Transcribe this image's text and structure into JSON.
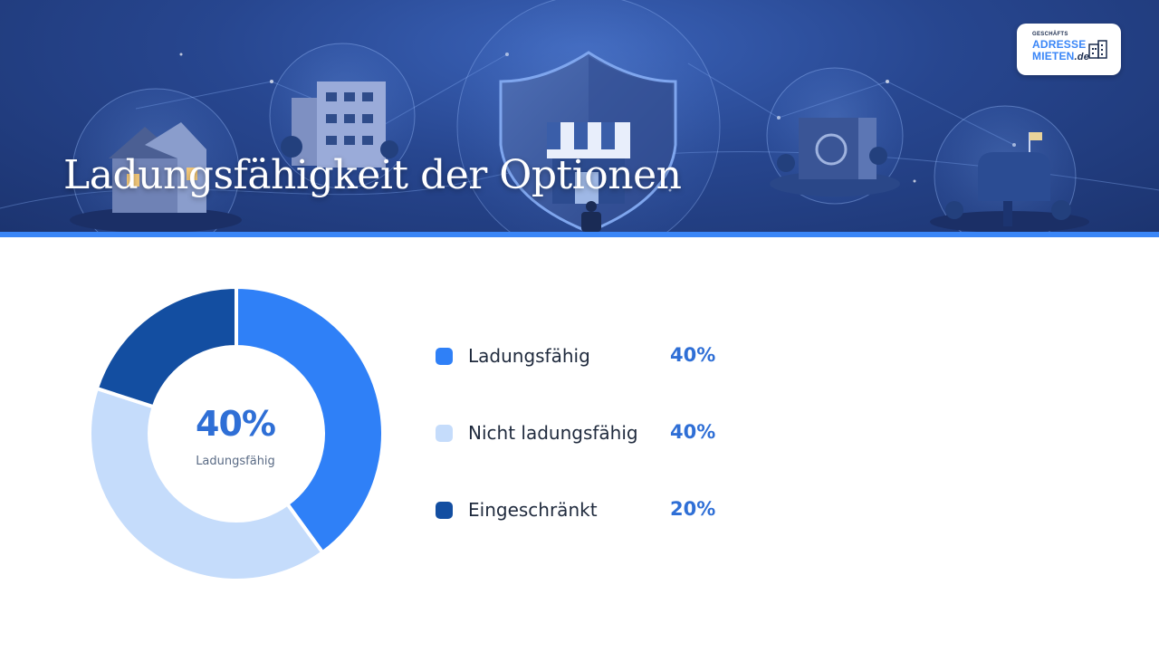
{
  "slide": {
    "title": "Ladungsfähigkeit der Optionen"
  },
  "logo": {
    "small": "GESCHÄFTS",
    "line1": "ADRESSE",
    "line2": "MIETEN",
    "tld": ".de"
  },
  "colors": {
    "accent": "#3a86f7",
    "ladungsfaehig": "#2f80f7",
    "nicht_ladungsfaehig": "#c5dcfb",
    "eingeschraenkt": "#134ea1",
    "value_text": "#2f6fd6"
  },
  "chart_data": {
    "type": "pie",
    "donut": true,
    "categories": [
      "Ladungsfähig",
      "Nicht ladungsfähig",
      "Eingeschränkt"
    ],
    "values": [
      40,
      40,
      20
    ],
    "value_labels": [
      "40%",
      "40%",
      "20%"
    ],
    "center_value": "40%",
    "center_label": "Ladungsfähig",
    "legend_position": "right"
  }
}
